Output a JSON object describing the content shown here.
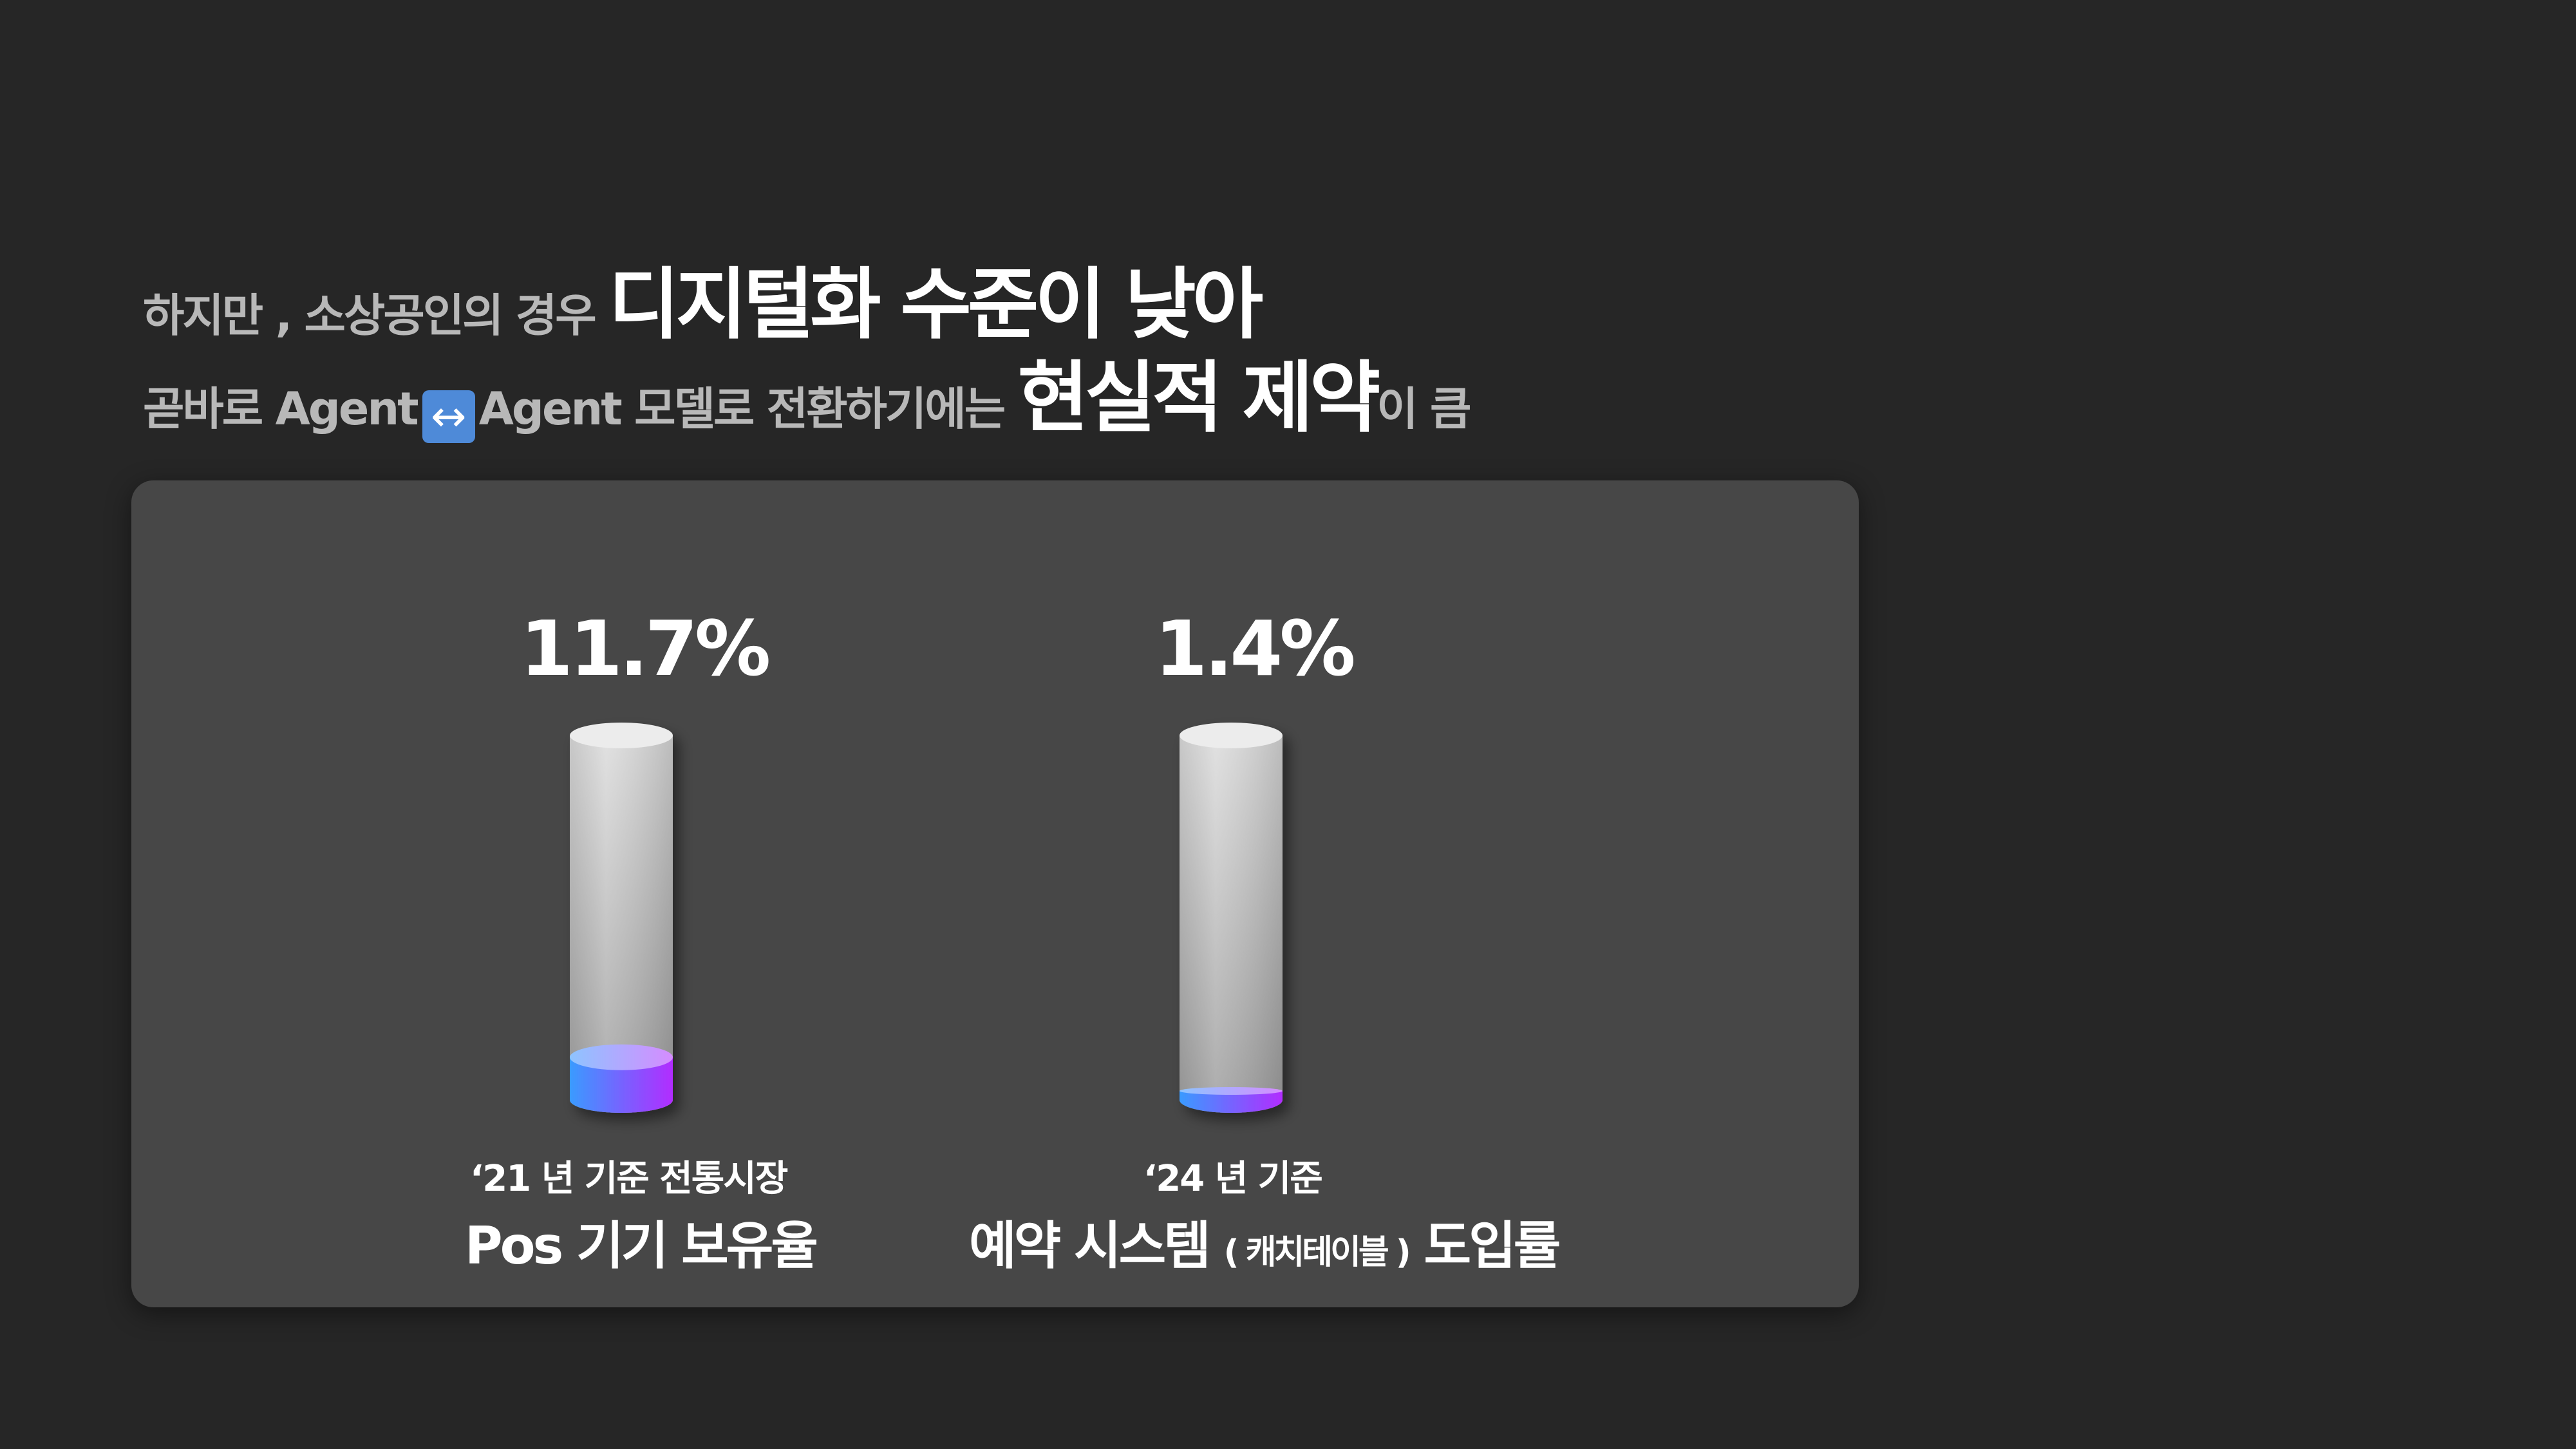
{
  "heading": {
    "line1_prefix": "하지만 ,  소상공인의 경우 ",
    "line1_emph": "디지털화 수준이 낮아",
    "line2_prefix": "곧바로  Agent",
    "line2_arrow": "↔",
    "line2_mid": "Agent  모델로 전환하기에는 ",
    "line2_emph": "현실적 제약",
    "line2_suffix": "이 큼"
  },
  "captions": [
    {
      "sub": "‘21 년 기준 전통시장",
      "main": "Pos  기기 보유율",
      "paren": "",
      "tail": ""
    },
    {
      "sub": "‘24 년 기준",
      "main": "예약 시스템 ",
      "paren": "( 캐치테이블 )",
      "tail": " 도입률"
    }
  ],
  "chart_data": {
    "type": "bar",
    "style": "cylinder-gauge",
    "categories": [
      "Pos 기기 보유율",
      "예약 시스템 (캐치테이블) 도입률"
    ],
    "values": [
      11.7,
      1.4
    ],
    "value_labels": [
      "11.7%",
      "1.4%"
    ],
    "unit": "%",
    "ylim": [
      0,
      100
    ],
    "colors": {
      "tube": "#c8c8c8",
      "fill_start": "#3a9bff",
      "fill_end": "#b22cff",
      "panel": "#474747"
    }
  }
}
